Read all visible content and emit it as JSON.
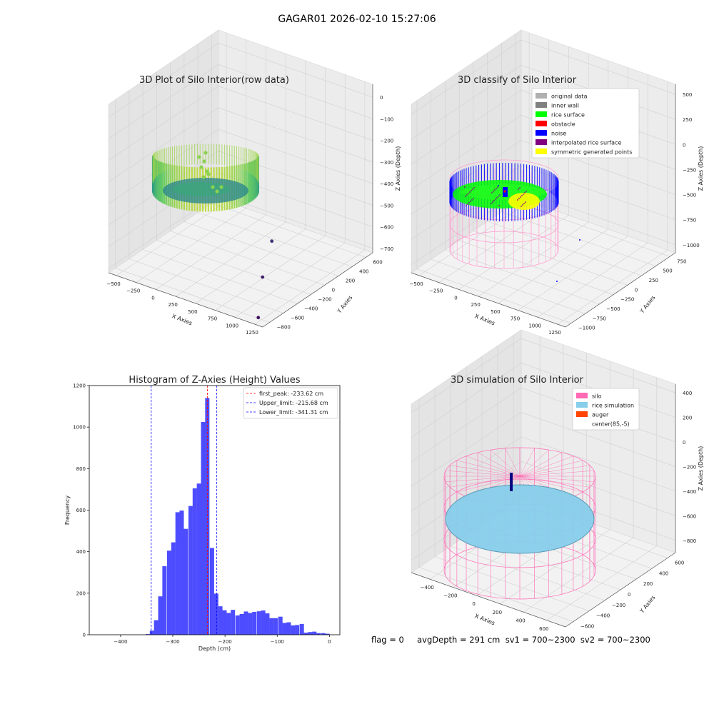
{
  "figure": {
    "suptitle": "GAGAR01 2026-02-10 15:27:06",
    "status_line": "flag = 0     avgDepth = 291 cm  sv1 = 700~2300  sv2 = 700~2300"
  },
  "colors": {
    "original_data": "#b0b0b0",
    "inner_wall": "#808080",
    "rice_surface": "#00ff00",
    "obstacle": "#ff0000",
    "noise": "#0000ff",
    "interpolated_rice_surface": "#800080",
    "symmetric_generated_points": "#ffff00",
    "silo": "#ff69b4",
    "rice_simulation": "#87ceeb",
    "auger": "#ff4500",
    "histogram_bar": "#4d4dff",
    "first_peak_line": "#ff0000",
    "limit_line": "#0000ff"
  },
  "chart_data": [
    {
      "type": "scatter3d",
      "title": "3D Plot of Silo Interior(row data)",
      "xlabel": "X Axies",
      "ylabel": "Y Axies",
      "zlabel": "Z Axies (Depth)",
      "x_ticks": [
        -500,
        -250,
        0,
        250,
        500,
        750,
        1000,
        1250
      ],
      "y_ticks": [
        -800,
        -600,
        -400,
        -200,
        0,
        200,
        400,
        600
      ],
      "z_ticks": [
        -700,
        -600,
        -500,
        -400,
        -300,
        -200,
        -100,
        0
      ],
      "xlim": [
        -600,
        1350
      ],
      "ylim": [
        -900,
        700
      ],
      "zlim": [
        -720,
        60
      ],
      "colormap": "viridis",
      "outliers": [
        {
          "x": 1250,
          "y": -850,
          "z": -700
        },
        {
          "x": 1000,
          "y": -500,
          "z": -620
        },
        {
          "x": 900,
          "y": -250,
          "z": -520
        }
      ]
    },
    {
      "type": "scatter3d",
      "title": "3D classify of Silo Interior",
      "xlabel": "X Axies",
      "ylabel": "Y Axies",
      "zlabel": "Z Axies (Depth)",
      "x_ticks": [
        -500,
        -250,
        0,
        250,
        500,
        750,
        1000,
        1250
      ],
      "y_ticks": [
        -1000,
        -750,
        -500,
        -250,
        0,
        250,
        500,
        750
      ],
      "z_ticks": [
        -1000,
        -750,
        -500,
        -250,
        0,
        250,
        500
      ],
      "xlim": [
        -600,
        1350
      ],
      "ylim": [
        -1100,
        850
      ],
      "zlim": [
        -1080,
        600
      ],
      "legend": {
        "position": "top-right",
        "entries": [
          {
            "label": "original data",
            "color_key": "original_data"
          },
          {
            "label": "inner wall",
            "color_key": "inner_wall"
          },
          {
            "label": "rice surface",
            "color_key": "rice_surface"
          },
          {
            "label": "obstacle",
            "color_key": "obstacle"
          },
          {
            "label": "noise",
            "color_key": "noise"
          },
          {
            "label": "interpolated rice surface",
            "color_key": "interpolated_rice_surface"
          },
          {
            "label": "symmetric generated points",
            "color_key": "symmetric_generated_points"
          }
        ]
      }
    },
    {
      "type": "bar",
      "title": "Histogram of Z-Axies (Height) Values",
      "xlabel": "Depth (cm)",
      "ylabel": "Frequency",
      "xlim": [
        -460,
        20
      ],
      "ylim": [
        0,
        1200
      ],
      "x_ticks": [
        -400,
        -300,
        -200,
        -100,
        0
      ],
      "y_ticks": [
        0,
        200,
        400,
        600,
        800,
        1000,
        1200
      ],
      "bin_width": 8.2,
      "bins": [
        {
          "x0": -352,
          "v": 3
        },
        {
          "x0": -344,
          "v": 20
        },
        {
          "x0": -336,
          "v": 70
        },
        {
          "x0": -328,
          "v": 185
        },
        {
          "x0": -320,
          "v": 330
        },
        {
          "x0": -311,
          "v": 405
        },
        {
          "x0": -303,
          "v": 445
        },
        {
          "x0": -295,
          "v": 590
        },
        {
          "x0": -287,
          "v": 598
        },
        {
          "x0": -279,
          "v": 510
        },
        {
          "x0": -270,
          "v": 620
        },
        {
          "x0": -262,
          "v": 705
        },
        {
          "x0": -254,
          "v": 728
        },
        {
          "x0": -246,
          "v": 1025
        },
        {
          "x0": -238,
          "v": 1140
        },
        {
          "x0": -229,
          "v": 418
        },
        {
          "x0": -221,
          "v": 198
        },
        {
          "x0": -213,
          "v": 137
        },
        {
          "x0": -205,
          "v": 118
        },
        {
          "x0": -197,
          "v": 105
        },
        {
          "x0": -189,
          "v": 120
        },
        {
          "x0": -180,
          "v": 93
        },
        {
          "x0": -172,
          "v": 100
        },
        {
          "x0": -164,
          "v": 112
        },
        {
          "x0": -156,
          "v": 105
        },
        {
          "x0": -148,
          "v": 110
        },
        {
          "x0": -139,
          "v": 113
        },
        {
          "x0": -131,
          "v": 117
        },
        {
          "x0": -123,
          "v": 103
        },
        {
          "x0": -115,
          "v": 80
        },
        {
          "x0": -107,
          "v": 80
        },
        {
          "x0": -98,
          "v": 87
        },
        {
          "x0": -90,
          "v": 57
        },
        {
          "x0": -82,
          "v": 60
        },
        {
          "x0": -74,
          "v": 45
        },
        {
          "x0": -66,
          "v": 47
        },
        {
          "x0": -57,
          "v": 52
        },
        {
          "x0": -49,
          "v": 10
        },
        {
          "x0": -41,
          "v": 13
        },
        {
          "x0": -33,
          "v": 15
        },
        {
          "x0": -25,
          "v": 8
        },
        {
          "x0": -16,
          "v": 8
        },
        {
          "x0": -8,
          "v": 5
        }
      ],
      "vlines": [
        {
          "label": "first_peak: -233.62 cm",
          "x": -233.62,
          "color_key": "first_peak_line"
        },
        {
          "label": "Upper_limit: -215.68 cm",
          "x": -215.68,
          "color_key": "limit_line"
        },
        {
          "label": "Lower_limit: -341.31 cm",
          "x": -341.31,
          "color_key": "limit_line"
        }
      ],
      "legend": {
        "position": "top-right"
      }
    },
    {
      "type": "surface3d",
      "title": "3D simulation of Silo Interior",
      "xlabel": "X Axies",
      "ylabel": "Y Axies",
      "zlabel": "Z Axies (Depth)",
      "x_ticks": [
        -400,
        -200,
        0,
        200,
        400,
        600
      ],
      "y_ticks": [
        -600,
        -400,
        -200,
        0,
        200,
        400,
        600
      ],
      "z_ticks": [
        -800,
        -600,
        -400,
        -200,
        0,
        200,
        400
      ],
      "xlim": [
        -560,
        760
      ],
      "ylim": [
        -700,
        700
      ],
      "zlim": [
        -900,
        470
      ],
      "legend": {
        "position": "top-right",
        "entries": [
          {
            "label": "silo",
            "color_key": "silo"
          },
          {
            "label": "rice simulation",
            "color_key": "rice_simulation"
          },
          {
            "label": "auger",
            "color_key": "auger"
          },
          {
            "label": "center(85,-5)",
            "color_key": ""
          }
        ]
      }
    }
  ]
}
